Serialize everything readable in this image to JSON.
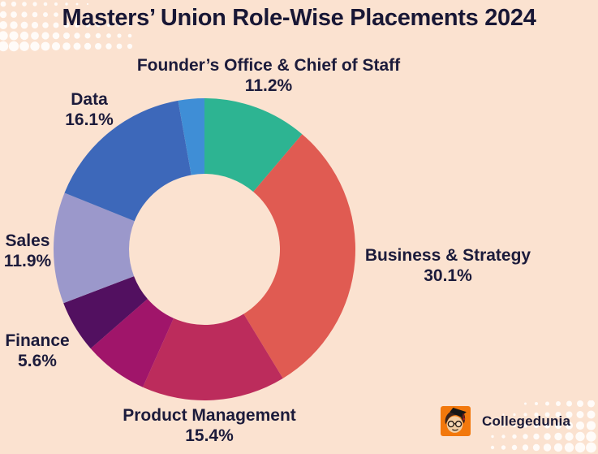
{
  "header": {
    "title": "Masters’ Union Role-Wise Placements 2024"
  },
  "chart_data": {
    "type": "pie",
    "subtype": "donut",
    "title": "Masters’ Union Role-Wise Placements 2024",
    "start_angle_deg": 0,
    "direction": "clockwise",
    "inner_radius_ratio": 0.5,
    "legend": "none",
    "segments": [
      {
        "label": "Founder’s Office & Chief of Staff",
        "pct_label": "11.2%",
        "value": 11.2,
        "color": "#2db492"
      },
      {
        "label": "Business & Strategy",
        "pct_label": "30.1%",
        "value": 30.1,
        "color": "#e05b52"
      },
      {
        "label": "Product Management",
        "pct_label": "15.4%",
        "value": 15.4,
        "color": "#bc2c5c"
      },
      {
        "label": "",
        "pct_label": "",
        "value": 6.9,
        "color": "#a0156a",
        "estimated": true
      },
      {
        "label": "Finance",
        "pct_label": "5.6%",
        "value": 5.6,
        "color": "#521060"
      },
      {
        "label": "Sales",
        "pct_label": "11.9%",
        "value": 11.9,
        "color": "#9b98cb"
      },
      {
        "label": "Data",
        "pct_label": "16.1%",
        "value": 16.1,
        "color": "#3d68ba"
      },
      {
        "label": "",
        "pct_label": "",
        "value": 2.8,
        "color": "#3f8ed6",
        "estimated": true
      }
    ]
  },
  "footer": {
    "brand": "Collegedunia",
    "logo_icon": "collegedunia-mascot-icon"
  },
  "colors": {
    "background": "#fbe2d0",
    "text": "#1c1b3b",
    "title_text": "#181735",
    "dot_pattern": "#ffffff",
    "logo_orange": "#f2780c"
  }
}
